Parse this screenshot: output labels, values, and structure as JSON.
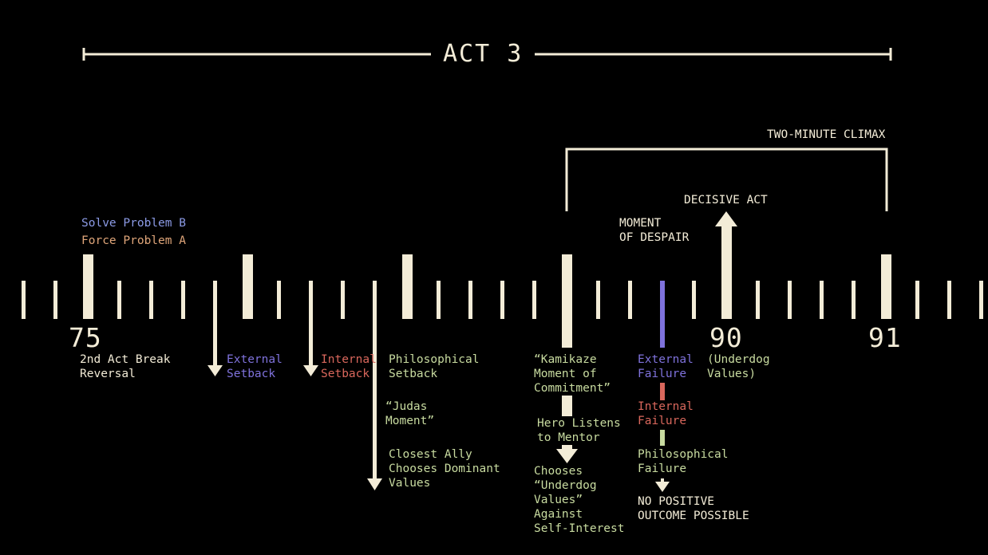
{
  "colors": {
    "background": "#000000",
    "cream": "#f3ecd7",
    "green": "#c8dba0",
    "purple": "#7f72dc",
    "red": "#d9675c",
    "orange": "#e0a67a",
    "blue": "#8c9be6"
  },
  "header": {
    "act_title": "ACT 3"
  },
  "bracket": {
    "title": "TWO-MINUTE CLIMAX"
  },
  "timeline": {
    "num_75": "75",
    "num_90": "90",
    "num_91": "91"
  },
  "top_labels": {
    "solve_b": "Solve Problem B",
    "force_a": "Force Problem A",
    "despair": "MOMENT\nOF DESPAIR",
    "decisive": "DECISIVE ACT"
  },
  "beats": {
    "act_break": "2nd Act Break\nReversal",
    "external_setback": "External\nSetback",
    "internal_setback": "Internal\nSetback",
    "philosophical_setback": "Philosophical\nSetback",
    "judas": "“Judas\nMoment”",
    "closest_ally": "Closest Ally\nChooses Dominant\nValues",
    "kamikaze": "“Kamikaze\nMoment of\nCommitment”",
    "hero_listens": "Hero Listens\nto Mentor",
    "chooses_underdog": "Chooses\n“Underdog\nValues”\nAgainst\nSelf-Interest",
    "external_failure": "External\nFailure",
    "internal_failure": "Internal\nFailure",
    "philosophical_failure": "Philosophical\nFailure",
    "no_positive": "NO POSITIVE\nOUTCOME POSSIBLE",
    "underdog_values": "(Underdog\nValues)"
  }
}
